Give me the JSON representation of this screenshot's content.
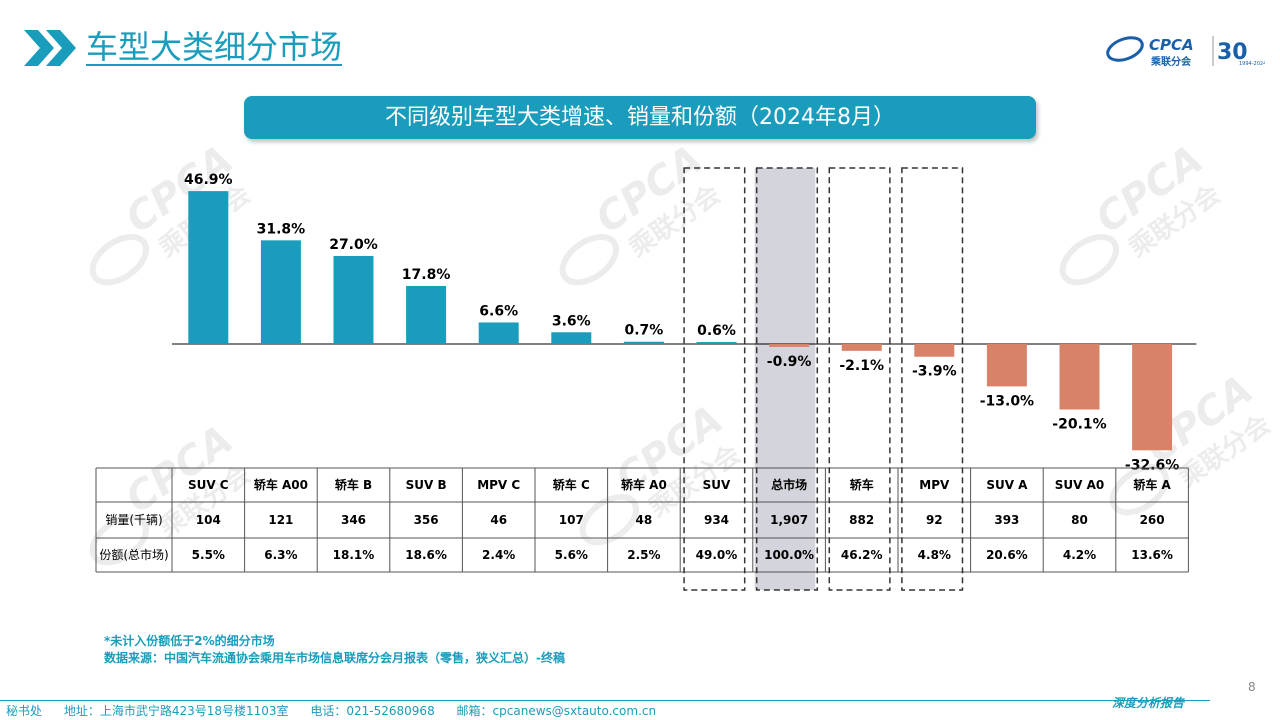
{
  "header": {
    "title": "车型大类细分市场",
    "logo_text": "CPCA",
    "logo_subtext": "乘联分会",
    "anniversary": "30",
    "anniversary_years": "1994-2024"
  },
  "banner": {
    "title": "不同级别车型大类增速、销量和份额（2024年8月）"
  },
  "watermark": {
    "text": "CPCA",
    "subtext": "乘联分会"
  },
  "colors": {
    "accent": "#1a9cbc",
    "positive": "#1a9cbc",
    "negative": "#d9826a",
    "highlight": "#d4d4dc"
  },
  "chart_data": {
    "type": "bar",
    "categories": [
      "SUV C",
      "轿车 A00",
      "轿车 B",
      "SUV B",
      "MPV C",
      "轿车 C",
      "轿车 A0",
      "SUV",
      "总市场",
      "轿车",
      "MPV",
      "SUV A",
      "SUV A0",
      "轿车 A"
    ],
    "growth_labels": [
      "46.9%",
      "31.8%",
      "27.0%",
      "17.8%",
      "6.6%",
      "3.6%",
      "0.7%",
      "0.6%",
      "-0.9%",
      "-2.1%",
      "-3.9%",
      "-13.0%",
      "-20.1%",
      "-32.6%"
    ],
    "values": [
      46.9,
      31.8,
      27.0,
      17.8,
      6.6,
      3.6,
      0.7,
      0.6,
      -0.9,
      -2.1,
      -3.9,
      -13.0,
      -20.1,
      -32.6
    ],
    "unit": "%",
    "dashed_box_categories": [
      "SUV",
      "总市场",
      "轿车",
      "MPV"
    ],
    "highlight_category": "总市场"
  },
  "table": {
    "row_headers": [
      "销量(千辆)",
      "份额(总市场)"
    ],
    "sales": [
      "104",
      "121",
      "346",
      "356",
      "46",
      "107",
      "48",
      "934",
      "1,907",
      "882",
      "92",
      "393",
      "80",
      "260"
    ],
    "share": [
      "5.5%",
      "6.3%",
      "18.1%",
      "18.6%",
      "2.4%",
      "5.6%",
      "2.5%",
      "49.0%",
      "100.0%",
      "46.2%",
      "4.8%",
      "20.6%",
      "4.2%",
      "13.6%"
    ]
  },
  "footnotes": {
    "note": "*未计入份额低于2%的细分市场",
    "source": "数据来源：中国汽车流通协会乘用车市场信息联席分会月报表（零售，狭义汇总）-终稿"
  },
  "footer": {
    "office": "秘书处",
    "address": "地址：上海市武宁路423号18号楼1103室",
    "phone": "电话：021-52680968",
    "email": "邮箱：cpcanews@sxtauto.com.cn",
    "report_type": "深度分析报告",
    "page_number": "8"
  }
}
